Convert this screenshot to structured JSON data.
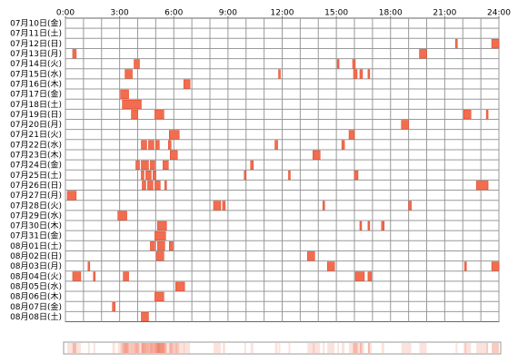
{
  "chart_data": {
    "type": "timeline",
    "categories": [
      "07月10日(金)",
      "07月11日(土)",
      "07月12日(日)",
      "07月13日(月)",
      "07月14日(火)",
      "07月15日(水)",
      "07月16日(木)",
      "07月17日(金)",
      "07月18日(土)",
      "07月19日(日)",
      "07月20日(月)",
      "07月21日(火)",
      "07月22日(水)",
      "07月23日(木)",
      "07月24日(金)",
      "07月25日(土)",
      "07月26日(日)",
      "07月27日(月)",
      "07月28日(火)",
      "07月29日(水)",
      "07月30日(木)",
      "07月31日(金)",
      "08月01日(土)",
      "08月02日(日)",
      "08月03日(月)",
      "08月04日(火)",
      "08月05日(水)",
      "08月06日(木)",
      "08月07日(金)",
      "08月08日(土)"
    ],
    "intervals": [
      [],
      [],
      [
        [
          21.6,
          21.7
        ],
        [
          23.6,
          24
        ]
      ],
      [
        [
          0.4,
          0.6
        ],
        [
          19.6,
          20.0
        ]
      ],
      [
        [
          3.8,
          4.1
        ],
        [
          15.05,
          15.15
        ],
        [
          15.9,
          16.05
        ]
      ],
      [
        [
          3.3,
          3.7
        ],
        [
          11.8,
          11.9
        ],
        [
          15.95,
          16.15
        ],
        [
          16.3,
          16.45
        ],
        [
          16.75,
          16.85
        ]
      ],
      [
        [
          6.55,
          6.9
        ]
      ],
      [
        [
          3.05,
          3.5
        ]
      ],
      [
        [
          3.15,
          4.2
        ]
      ],
      [
        [
          3.65,
          4.0
        ],
        [
          4.95,
          5.45
        ],
        [
          22.05,
          22.45
        ],
        [
          23.3,
          23.4
        ]
      ],
      [
        [
          18.6,
          19.0
        ]
      ],
      [
        [
          5.75,
          6.3
        ],
        [
          15.7,
          16.0
        ]
      ],
      [
        [
          4.2,
          4.5
        ],
        [
          4.6,
          4.9
        ],
        [
          5.0,
          5.2
        ],
        [
          5.7,
          5.85
        ],
        [
          11.6,
          11.75
        ],
        [
          15.3,
          15.45
        ]
      ],
      [
        [
          5.8,
          6.2
        ],
        [
          13.7,
          14.1
        ]
      ],
      [
        [
          3.9,
          4.1
        ],
        [
          4.2,
          4.6
        ],
        [
          4.7,
          4.95
        ],
        [
          5.4,
          5.7
        ],
        [
          10.25,
          10.4
        ]
      ],
      [
        [
          4.2,
          4.35
        ],
        [
          4.45,
          4.75
        ],
        [
          4.85,
          5.0
        ],
        [
          9.9,
          10.0
        ],
        [
          12.35,
          12.45
        ],
        [
          16.0,
          16.2
        ]
      ],
      [
        [
          4.25,
          4.45
        ],
        [
          4.55,
          4.85
        ],
        [
          4.95,
          5.25
        ],
        [
          5.5,
          5.6
        ],
        [
          22.75,
          23.4
        ]
      ],
      [
        [
          0.1,
          0.6
        ]
      ],
      [
        [
          8.2,
          8.6
        ],
        [
          8.7,
          8.85
        ],
        [
          14.25,
          14.35
        ],
        [
          19.0,
          19.15
        ]
      ],
      [
        [
          2.9,
          3.4
        ]
      ],
      [
        [
          5.1,
          5.6
        ],
        [
          16.3,
          16.4
        ],
        [
          16.75,
          16.85
        ],
        [
          17.5,
          17.65
        ]
      ],
      [
        [
          4.95,
          5.55
        ]
      ],
      [
        [
          4.7,
          4.95
        ],
        [
          5.1,
          5.5
        ],
        [
          5.75,
          5.95
        ]
      ],
      [
        [
          5.05,
          5.45
        ],
        [
          13.4,
          13.8
        ]
      ],
      [
        [
          1.25,
          1.35
        ],
        [
          14.5,
          14.9
        ],
        [
          22.1,
          22.2
        ],
        [
          23.6,
          24.0
        ]
      ],
      [
        [
          0.4,
          0.85
        ],
        [
          1.55,
          1.65
        ],
        [
          3.2,
          3.5
        ],
        [
          16.05,
          16.55
        ],
        [
          16.75,
          16.95
        ]
      ],
      [
        [
          6.1,
          6.6
        ]
      ],
      [
        [
          4.95,
          5.45
        ]
      ],
      [
        [
          2.6,
          2.75
        ]
      ],
      [
        [
          4.2,
          4.6
        ]
      ]
    ],
    "color": "#f26d4f",
    "xlim": [
      0,
      24
    ],
    "minor_step": 1,
    "xticks": [
      {
        "value": 0,
        "label": "0:00"
      },
      {
        "value": 3,
        "label": "3:00"
      },
      {
        "value": 6,
        "label": "6:00"
      },
      {
        "value": 9,
        "label": "9:00"
      },
      {
        "value": 12,
        "label": "12:00"
      },
      {
        "value": 15,
        "label": "15:00"
      },
      {
        "value": 18,
        "label": "18:00"
      },
      {
        "value": 21,
        "label": "21:00"
      },
      {
        "value": 24,
        "label": "24:00"
      }
    ]
  }
}
